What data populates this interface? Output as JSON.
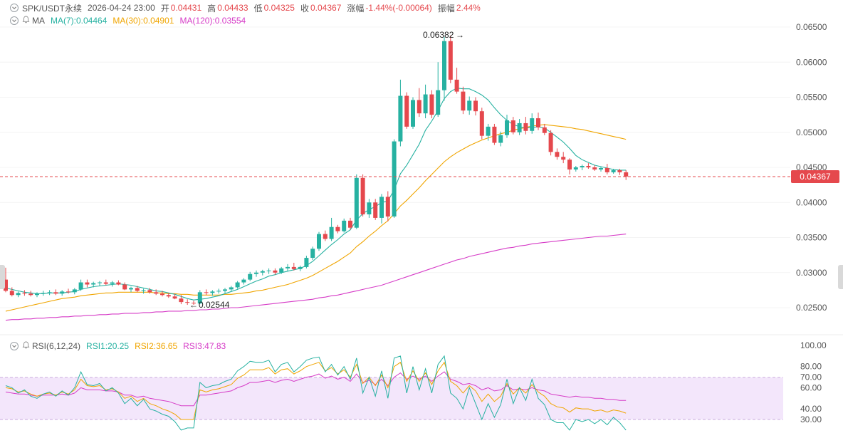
{
  "header": {
    "symbol": "SPK/USDT永续",
    "datetime": "2026-04-24 23:00",
    "open_label": "开",
    "open": "0.04431",
    "high_label": "高",
    "high": "0.04433",
    "low_label": "低",
    "low": "0.04325",
    "close_label": "收",
    "close": "0.04367",
    "change_label": "涨幅",
    "change": "-1.44%(-0.00064)",
    "amplitude_label": "振幅",
    "amplitude": "2.44%"
  },
  "ma_indicator": {
    "label": "MA",
    "ma7": "MA(7):0.04464",
    "ma30": "MA(30):0.04901",
    "ma120": "MA(120):0.03554"
  },
  "rsi_indicator": {
    "label": "RSI(6,12,24)",
    "rsi1": "RSI1:20.25",
    "rsi2": "RSI2:36.65",
    "rsi3": "RSI3:47.83"
  },
  "price_axis": [
    "0.06500",
    "0.06000",
    "0.05500",
    "0.05000",
    "0.04500",
    "0.04000",
    "0.03500",
    "0.03000",
    "0.02500"
  ],
  "rsi_axis": [
    "100.00",
    "80.00",
    "70.00",
    "60.00",
    "40.00",
    "30.00"
  ],
  "current_price": "0.04367",
  "annotations": {
    "high_marker": "0.06382",
    "low_marker": "0.02544"
  },
  "colors": {
    "up": "#26b1a1",
    "down": "#e5484d",
    "ma7": "#26b1a1",
    "ma30": "#f0a500",
    "ma120": "#d63cc7",
    "rsi_band": "#f3e6fb"
  },
  "chart_data": {
    "type": "candlestick",
    "ylim": [
      0.023,
      0.0665
    ],
    "rsi_ylim": [
      25,
      100
    ],
    "candles": [
      [
        0.029,
        0.0307,
        0.0272,
        0.0274
      ],
      [
        0.0274,
        0.0279,
        0.0266,
        0.0268
      ],
      [
        0.0268,
        0.0273,
        0.0265,
        0.0271
      ],
      [
        0.0271,
        0.0275,
        0.0267,
        0.027
      ],
      [
        0.027,
        0.0274,
        0.0266,
        0.0268
      ],
      [
        0.0268,
        0.0272,
        0.0265,
        0.027
      ],
      [
        0.027,
        0.0274,
        0.0267,
        0.0271
      ],
      [
        0.0271,
        0.0275,
        0.0268,
        0.0272
      ],
      [
        0.0272,
        0.0276,
        0.0268,
        0.027
      ],
      [
        0.027,
        0.0275,
        0.0267,
        0.0273
      ],
      [
        0.0273,
        0.0277,
        0.027,
        0.0272
      ],
      [
        0.0272,
        0.0278,
        0.0269,
        0.0276
      ],
      [
        0.0276,
        0.029,
        0.0274,
        0.0286
      ],
      [
        0.0286,
        0.029,
        0.0279,
        0.0283
      ],
      [
        0.0283,
        0.0287,
        0.0279,
        0.0285
      ],
      [
        0.0285,
        0.0288,
        0.0281,
        0.0286
      ],
      [
        0.0286,
        0.029,
        0.0282,
        0.0284
      ],
      [
        0.0284,
        0.0288,
        0.028,
        0.0286
      ],
      [
        0.0286,
        0.0289,
        0.0282,
        0.0283
      ],
      [
        0.0283,
        0.0286,
        0.0275,
        0.0276
      ],
      [
        0.0276,
        0.028,
        0.0272,
        0.0278
      ],
      [
        0.0278,
        0.0281,
        0.0272,
        0.0274
      ],
      [
        0.0274,
        0.0277,
        0.027,
        0.0275
      ],
      [
        0.0275,
        0.0278,
        0.027,
        0.0272
      ],
      [
        0.0272,
        0.0276,
        0.0268,
        0.027
      ],
      [
        0.027,
        0.0274,
        0.0266,
        0.0268
      ],
      [
        0.0268,
        0.0271,
        0.0264,
        0.0266
      ],
      [
        0.0266,
        0.027,
        0.0262,
        0.0263
      ],
      [
        0.0263,
        0.0268,
        0.0255,
        0.0258
      ],
      [
        0.0258,
        0.0262,
        0.0254,
        0.0257
      ],
      [
        0.0257,
        0.026,
        0.0254,
        0.0256
      ],
      [
        0.0256,
        0.0275,
        0.0255,
        0.0272
      ],
      [
        0.0272,
        0.0276,
        0.0268,
        0.0271
      ],
      [
        0.0271,
        0.0275,
        0.0267,
        0.0273
      ],
      [
        0.0273,
        0.0277,
        0.027,
        0.0274
      ],
      [
        0.0274,
        0.0278,
        0.0271,
        0.0276
      ],
      [
        0.0276,
        0.0281,
        0.0273,
        0.0279
      ],
      [
        0.0279,
        0.0288,
        0.0277,
        0.0286
      ],
      [
        0.0286,
        0.0292,
        0.0283,
        0.029
      ],
      [
        0.029,
        0.0301,
        0.0288,
        0.0298
      ],
      [
        0.0298,
        0.0303,
        0.0294,
        0.03
      ],
      [
        0.03,
        0.0304,
        0.0296,
        0.0302
      ],
      [
        0.0302,
        0.0306,
        0.0298,
        0.0303
      ],
      [
        0.0303,
        0.0306,
        0.0297,
        0.03
      ],
      [
        0.03,
        0.0308,
        0.0298,
        0.0306
      ],
      [
        0.0306,
        0.0312,
        0.0302,
        0.0308
      ],
      [
        0.0308,
        0.0314,
        0.0303,
        0.0305
      ],
      [
        0.0305,
        0.031,
        0.0302,
        0.0308
      ],
      [
        0.0308,
        0.0324,
        0.0306,
        0.0321
      ],
      [
        0.0321,
        0.0337,
        0.0318,
        0.0334
      ],
      [
        0.0334,
        0.0358,
        0.0331,
        0.0355
      ],
      [
        0.0355,
        0.036,
        0.0345,
        0.0348
      ],
      [
        0.0348,
        0.0378,
        0.0345,
        0.0365
      ],
      [
        0.0365,
        0.0368,
        0.0356,
        0.0359
      ],
      [
        0.0359,
        0.0377,
        0.0357,
        0.0374
      ],
      [
        0.0374,
        0.0378,
        0.0361,
        0.0364
      ],
      [
        0.0364,
        0.044,
        0.0362,
        0.0435
      ],
      [
        0.0435,
        0.044,
        0.038,
        0.0383
      ],
      [
        0.0383,
        0.0405,
        0.0378,
        0.04
      ],
      [
        0.04,
        0.0405,
        0.0375,
        0.0378
      ],
      [
        0.0378,
        0.0412,
        0.037,
        0.0408
      ],
      [
        0.0408,
        0.0416,
        0.0373,
        0.038
      ],
      [
        0.038,
        0.049,
        0.0378,
        0.0487
      ],
      [
        0.0487,
        0.0575,
        0.048,
        0.0552
      ],
      [
        0.0552,
        0.0557,
        0.0505,
        0.0508
      ],
      [
        0.0508,
        0.055,
        0.0505,
        0.0546
      ],
      [
        0.0546,
        0.0563,
        0.0522,
        0.0527
      ],
      [
        0.0527,
        0.0568,
        0.052,
        0.0554
      ],
      [
        0.0554,
        0.056,
        0.052,
        0.0525
      ],
      [
        0.0525,
        0.06,
        0.0522,
        0.056
      ],
      [
        0.056,
        0.0636,
        0.0545,
        0.063
      ],
      [
        0.063,
        0.0638,
        0.057,
        0.0575
      ],
      [
        0.0575,
        0.0592,
        0.0555,
        0.0558
      ],
      [
        0.0558,
        0.0565,
        0.0526,
        0.0531
      ],
      [
        0.0531,
        0.0551,
        0.0525,
        0.0545
      ],
      [
        0.0545,
        0.055,
        0.0524,
        0.053
      ],
      [
        0.053,
        0.0535,
        0.049,
        0.0495
      ],
      [
        0.0495,
        0.0512,
        0.0488,
        0.0508
      ],
      [
        0.0508,
        0.0512,
        0.0482,
        0.0485
      ],
      [
        0.0485,
        0.0501,
        0.048,
        0.0496
      ],
      [
        0.0496,
        0.0525,
        0.0492,
        0.0517
      ],
      [
        0.0517,
        0.0522,
        0.0497,
        0.05
      ],
      [
        0.05,
        0.0519,
        0.0496,
        0.0513
      ],
      [
        0.0513,
        0.0522,
        0.0497,
        0.0502
      ],
      [
        0.0502,
        0.0527,
        0.0498,
        0.052
      ],
      [
        0.052,
        0.0528,
        0.0503,
        0.0507
      ],
      [
        0.0507,
        0.0512,
        0.0496,
        0.0499
      ],
      [
        0.0499,
        0.0503,
        0.0467,
        0.0472
      ],
      [
        0.0472,
        0.0477,
        0.0461,
        0.0465
      ],
      [
        0.0465,
        0.0472,
        0.0456,
        0.0461
      ],
      [
        0.0461,
        0.0463,
        0.044,
        0.0447
      ],
      [
        0.0447,
        0.0452,
        0.0444,
        0.045
      ],
      [
        0.045,
        0.0454,
        0.0446,
        0.0452
      ],
      [
        0.0452,
        0.0456,
        0.0448,
        0.045
      ],
      [
        0.045,
        0.0453,
        0.0445,
        0.0447
      ],
      [
        0.0447,
        0.0451,
        0.0444,
        0.0449
      ],
      [
        0.0449,
        0.0455,
        0.044,
        0.0443
      ],
      [
        0.0443,
        0.0448,
        0.0441,
        0.0446
      ],
      [
        0.0446,
        0.0448,
        0.0439,
        0.0443
      ],
      [
        0.0443,
        0.0446,
        0.0432,
        0.0437
      ]
    ],
    "ma7": [
      0.0278,
      0.0276,
      0.0274,
      0.0272,
      0.0271,
      0.027,
      0.027,
      0.0271,
      0.0271,
      0.0271,
      0.0272,
      0.0273,
      0.0276,
      0.0278,
      0.028,
      0.0281,
      0.0282,
      0.0283,
      0.0284,
      0.0283,
      0.0282,
      0.028,
      0.0278,
      0.0276,
      0.0274,
      0.0273,
      0.0271,
      0.0269,
      0.0266,
      0.0263,
      0.0261,
      0.0262,
      0.0263,
      0.0265,
      0.0267,
      0.027,
      0.0273,
      0.0276,
      0.028,
      0.0284,
      0.0288,
      0.0291,
      0.0295,
      0.0297,
      0.03,
      0.0302,
      0.0304,
      0.0306,
      0.031,
      0.0316,
      0.0324,
      0.0332,
      0.034,
      0.0347,
      0.0355,
      0.0361,
      0.0375,
      0.0384,
      0.039,
      0.0394,
      0.04,
      0.0402,
      0.0418,
      0.0441,
      0.0453,
      0.0468,
      0.0483,
      0.0503,
      0.0516,
      0.0531,
      0.0548,
      0.0558,
      0.0563,
      0.0562,
      0.0562,
      0.0558,
      0.0553,
      0.0546,
      0.0535,
      0.0525,
      0.0517,
      0.0511,
      0.0508,
      0.0506,
      0.0507,
      0.0508,
      0.0506,
      0.05,
      0.0493,
      0.0486,
      0.0477,
      0.0467,
      0.0461,
      0.0457,
      0.0453,
      0.0451,
      0.0449,
      0.0447,
      0.0446,
      0.0446
    ],
    "ma30": [
      0.0245,
      0.0247,
      0.0249,
      0.0251,
      0.0253,
      0.0255,
      0.0257,
      0.0259,
      0.0261,
      0.0263,
      0.0264,
      0.0265,
      0.0267,
      0.0268,
      0.0269,
      0.027,
      0.0271,
      0.0271,
      0.0272,
      0.0272,
      0.0272,
      0.0272,
      0.0272,
      0.0272,
      0.0271,
      0.0271,
      0.027,
      0.027,
      0.0269,
      0.0269,
      0.0268,
      0.0268,
      0.0268,
      0.0268,
      0.0268,
      0.0269,
      0.0269,
      0.027,
      0.0271,
      0.0272,
      0.0274,
      0.0275,
      0.0277,
      0.0279,
      0.0281,
      0.0283,
      0.0286,
      0.0289,
      0.0292,
      0.0296,
      0.0301,
      0.0306,
      0.0311,
      0.0316,
      0.0322,
      0.0328,
      0.0337,
      0.0344,
      0.0352,
      0.0359,
      0.0367,
      0.0374,
      0.0384,
      0.0395,
      0.0403,
      0.0412,
      0.0421,
      0.0431,
      0.044,
      0.0449,
      0.0458,
      0.0465,
      0.0471,
      0.0476,
      0.0481,
      0.0485,
      0.0489,
      0.0492,
      0.0495,
      0.0498,
      0.05,
      0.0503,
      0.0505,
      0.0507,
      0.0509,
      0.051,
      0.0511,
      0.051,
      0.0509,
      0.0508,
      0.0507,
      0.0505,
      0.0504,
      0.0502,
      0.05,
      0.0498,
      0.0496,
      0.0494,
      0.0492,
      0.049
    ],
    "ma120": [
      0.0232,
      0.0233,
      0.0233,
      0.0234,
      0.0234,
      0.0235,
      0.0235,
      0.0236,
      0.0236,
      0.0237,
      0.0237,
      0.0238,
      0.0238,
      0.0239,
      0.0239,
      0.024,
      0.024,
      0.0241,
      0.0241,
      0.0242,
      0.0242,
      0.0242,
      0.0243,
      0.0243,
      0.0244,
      0.0244,
      0.0245,
      0.0245,
      0.0245,
      0.0246,
      0.0246,
      0.0247,
      0.0247,
      0.0248,
      0.0248,
      0.0249,
      0.025,
      0.025,
      0.0251,
      0.0252,
      0.0253,
      0.0254,
      0.0255,
      0.0256,
      0.0257,
      0.0258,
      0.0259,
      0.026,
      0.0261,
      0.0262,
      0.0264,
      0.0265,
      0.0267,
      0.0268,
      0.027,
      0.0272,
      0.0274,
      0.0276,
      0.0278,
      0.028,
      0.0282,
      0.0285,
      0.0288,
      0.0291,
      0.0294,
      0.0297,
      0.03,
      0.0303,
      0.0306,
      0.0309,
      0.0312,
      0.0315,
      0.0318,
      0.032,
      0.0323,
      0.0325,
      0.0327,
      0.0329,
      0.0331,
      0.0333,
      0.0335,
      0.0336,
      0.0338,
      0.0339,
      0.0341,
      0.0342,
      0.0343,
      0.0344,
      0.0345,
      0.0346,
      0.0347,
      0.0348,
      0.0349,
      0.035,
      0.0351,
      0.0352,
      0.0352,
      0.0353,
      0.0354,
      0.0355
    ],
    "rsi1": [
      62,
      60,
      55,
      58,
      52,
      50,
      54,
      56,
      52,
      57,
      53,
      60,
      75,
      63,
      62,
      64,
      57,
      60,
      55,
      45,
      50,
      43,
      49,
      40,
      38,
      35,
      33,
      28,
      20,
      22,
      22,
      65,
      60,
      62,
      63,
      66,
      68,
      76,
      80,
      85,
      84,
      84,
      86,
      75,
      82,
      84,
      75,
      80,
      86,
      88,
      89,
      75,
      82,
      72,
      80,
      68,
      88,
      55,
      70,
      52,
      76,
      50,
      88,
      90,
      55,
      80,
      58,
      78,
      55,
      82,
      90,
      55,
      50,
      40,
      60,
      45,
      30,
      45,
      32,
      44,
      68,
      45,
      60,
      48,
      68,
      50,
      44,
      30,
      27,
      27,
      20,
      30,
      28,
      30,
      26,
      30,
      25,
      32,
      27,
      20
    ],
    "rsi2": [
      60,
      59,
      56,
      57,
      54,
      52,
      54,
      55,
      53,
      56,
      54,
      58,
      68,
      62,
      61,
      62,
      58,
      59,
      56,
      50,
      52,
      47,
      50,
      45,
      43,
      40,
      38,
      35,
      30,
      30,
      30,
      58,
      56,
      58,
      59,
      61,
      63,
      69,
      72,
      77,
      77,
      77,
      79,
      73,
      77,
      78,
      73,
      76,
      80,
      82,
      84,
      76,
      79,
      73,
      77,
      70,
      82,
      64,
      70,
      62,
      72,
      60,
      80,
      84,
      66,
      76,
      66,
      74,
      63,
      76,
      84,
      66,
      62,
      55,
      62,
      57,
      47,
      54,
      47,
      52,
      64,
      54,
      60,
      55,
      63,
      56,
      52,
      45,
      42,
      41,
      37,
      41,
      40,
      40,
      38,
      39,
      37,
      39,
      38,
      36
    ],
    "rsi3": [
      56,
      55,
      54,
      54,
      53,
      52,
      53,
      53,
      53,
      54,
      53,
      55,
      60,
      58,
      58,
      58,
      57,
      57,
      56,
      53,
      53,
      51,
      52,
      50,
      49,
      48,
      47,
      45,
      43,
      43,
      43,
      53,
      53,
      54,
      55,
      56,
      57,
      60,
      62,
      65,
      65,
      66,
      67,
      65,
      67,
      68,
      66,
      68,
      70,
      71,
      73,
      69,
      71,
      68,
      70,
      66,
      73,
      65,
      67,
      63,
      68,
      62,
      70,
      74,
      68,
      71,
      68,
      71,
      66,
      71,
      75,
      68,
      66,
      63,
      64,
      62,
      58,
      60,
      57,
      58,
      62,
      58,
      59,
      58,
      60,
      58,
      57,
      54,
      53,
      52,
      51,
      52,
      51,
      51,
      50,
      50,
      49,
      49,
      48,
      48
    ]
  }
}
